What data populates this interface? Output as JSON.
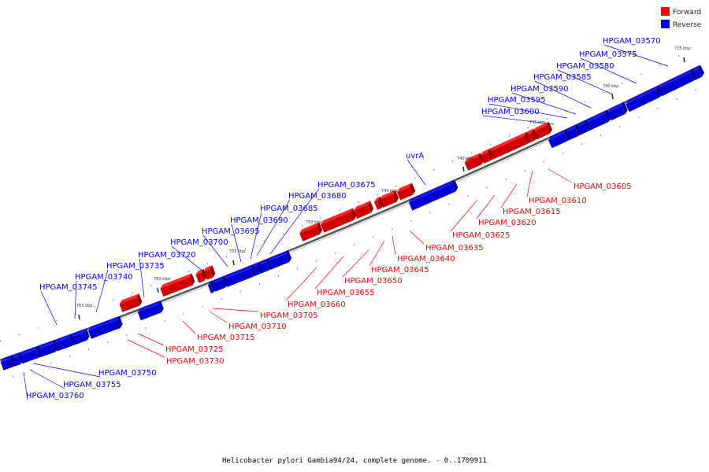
{
  "caption": "Helicobacter pylori Gambia94/24, complete genome. - 0..1709911",
  "legend": [
    {
      "label": "Forward",
      "color": "#ff0000"
    },
    {
      "label": "Reverse",
      "color": "#0000ff"
    }
  ],
  "colors": {
    "forward": "#ff0000",
    "reverse": "#0000ff",
    "backbone": "#555555"
  },
  "kbp_ticks": [
    "725 kbp",
    "730 kbp",
    "735 kbp",
    "740 kbp",
    "745 kbp",
    "750 kbp",
    "755 kbp",
    "760 kbp",
    "765 kbp"
  ],
  "genes_reverse": [
    "HPGAM_03570",
    "HPGAM_03575",
    "HPGAM_03580",
    "HPGAM_03585",
    "HPGAM_03590",
    "HPGAM_03595",
    "HPGAM_03600",
    "uvrA",
    "HPGAM_03675",
    "HPGAM_03680",
    "HPGAM_03685",
    "HPGAM_03690",
    "HPGAM_03695",
    "HPGAM_03700",
    "HPGAM_03720",
    "HPGAM_03735",
    "HPGAM_03740",
    "HPGAM_03745",
    "HPGAM_03750",
    "HPGAM_03755",
    "HPGAM_03760"
  ],
  "genes_forward": [
    "HPGAM_03605",
    "HPGAM_03610",
    "HPGAM_03615",
    "HPGAM_03620",
    "HPGAM_03625",
    "HPGAM_03635",
    "HPGAM_03640",
    "HPGAM_03645",
    "HPGAM_03650",
    "HPGAM_03655",
    "HPGAM_03660",
    "HPGAM_03705",
    "HPGAM_03710",
    "HPGAM_03715",
    "HPGAM_03725",
    "HPGAM_03730"
  ]
}
